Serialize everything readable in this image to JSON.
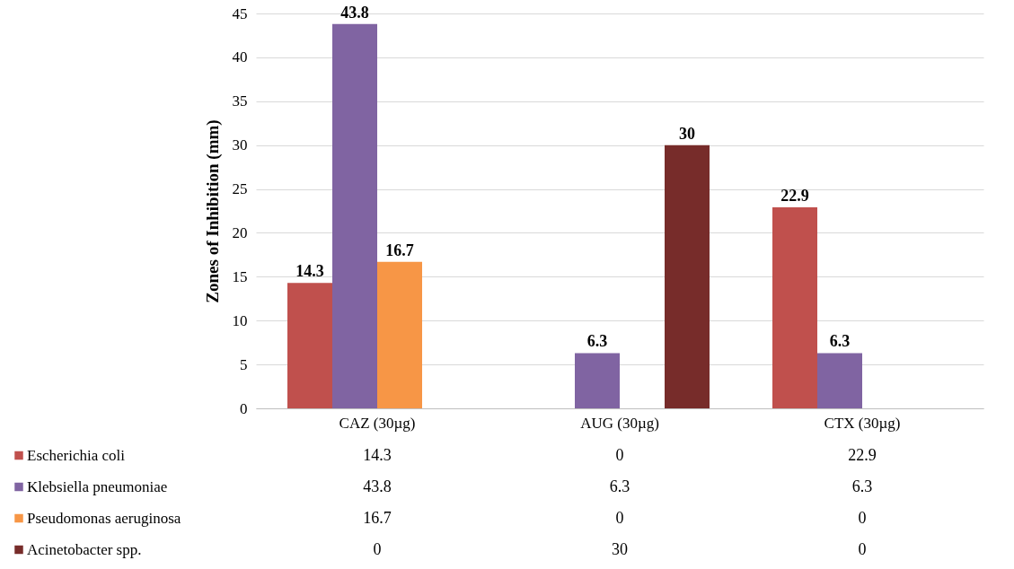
{
  "chart_data": {
    "type": "bar",
    "ylabel": "Zones of Inhibition (mm)",
    "categories": [
      "CAZ (30µg)",
      "AUG (30µg)",
      "CTX (30µg)"
    ],
    "series": [
      {
        "name": "Escherichia coli",
        "color": "#c0504d",
        "values": [
          14.3,
          0,
          22.9
        ]
      },
      {
        "name": "Klebsiella pneumoniae",
        "color": "#8064a2",
        "values": [
          43.8,
          6.3,
          6.3
        ]
      },
      {
        "name": "Pseudomonas aeruginosa",
        "color": "#f79646",
        "values": [
          16.7,
          0,
          0
        ]
      },
      {
        "name": "Acinetobacter spp.",
        "color": "#772c2a",
        "values": [
          0,
          30,
          0
        ]
      }
    ],
    "annotations": [
      "14.3",
      {
        "text": "43.8",
        "x": "CAZ (30µg)",
        "y": 43.8
      },
      {
        "text": "16.7",
        "x": "CAZ (30µg)",
        "y": 16.7
      },
      {
        "text": "6.3",
        "x": "AUG (30µg)",
        "y": 6.3
      },
      "30",
      "22.9",
      {
        "text": "6.3",
        "x": "CTX (30µg)",
        "y": 6.3
      }
    ],
    "ylim": [
      0,
      45
    ],
    "yticks": [
      0,
      5,
      10,
      15,
      20,
      25,
      30,
      35,
      40,
      45
    ],
    "grid": "y",
    "legend": "bottom",
    "data_labels": true
  }
}
